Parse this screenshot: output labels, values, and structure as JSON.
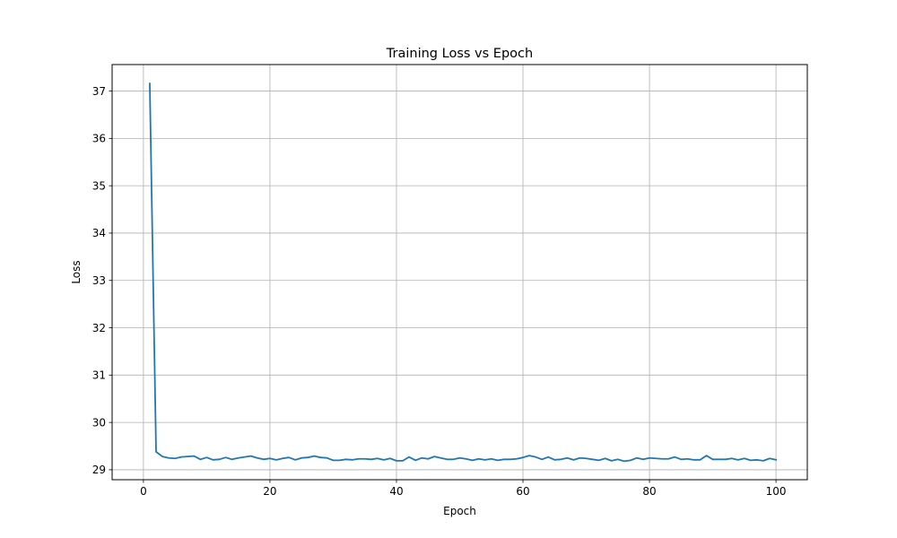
{
  "chart_data": {
    "type": "line",
    "title": "Training Loss vs Epoch",
    "xlabel": "Epoch",
    "ylabel": "Loss",
    "xlim": [
      -4.95,
      104.95
    ],
    "ylim": [
      28.79,
      37.56
    ],
    "xticks": [
      0,
      20,
      40,
      60,
      80,
      100
    ],
    "yticks": [
      29,
      30,
      31,
      32,
      33,
      34,
      35,
      36,
      37
    ],
    "grid": true,
    "series_color": "#1f77b4",
    "series": [
      {
        "x": [
          1,
          2,
          3,
          4,
          5,
          6,
          7,
          8,
          9,
          10,
          11,
          12,
          13,
          14,
          15,
          16,
          17,
          18,
          19,
          20,
          21,
          22,
          23,
          24,
          25,
          26,
          27,
          28,
          29,
          30,
          31,
          32,
          33,
          34,
          35,
          36,
          37,
          38,
          39,
          40,
          41,
          42,
          43,
          44,
          45,
          46,
          47,
          48,
          49,
          50,
          51,
          52,
          53,
          54,
          55,
          56,
          57,
          58,
          59,
          60,
          61,
          62,
          63,
          64,
          65,
          66,
          67,
          68,
          69,
          70,
          71,
          72,
          73,
          74,
          75,
          76,
          77,
          78,
          79,
          80,
          81,
          82,
          83,
          84,
          85,
          86,
          87,
          88,
          89,
          90,
          91,
          92,
          93,
          94,
          95,
          96,
          97,
          98,
          99,
          100
        ],
        "values": [
          37.16,
          29.38,
          29.28,
          29.25,
          29.24,
          29.27,
          29.28,
          29.29,
          29.22,
          29.26,
          29.21,
          29.22,
          29.26,
          29.22,
          29.25,
          29.27,
          29.29,
          29.25,
          29.22,
          29.24,
          29.21,
          29.24,
          29.26,
          29.21,
          29.25,
          29.26,
          29.29,
          29.26,
          29.25,
          29.2,
          29.2,
          29.22,
          29.21,
          29.23,
          29.23,
          29.22,
          29.24,
          29.21,
          29.24,
          29.19,
          29.19,
          29.27,
          29.2,
          29.25,
          29.23,
          29.28,
          29.25,
          29.22,
          29.22,
          29.25,
          29.23,
          29.2,
          29.23,
          29.21,
          29.23,
          29.2,
          29.22,
          29.22,
          29.23,
          29.26,
          29.3,
          29.27,
          29.22,
          29.27,
          29.21,
          29.22,
          29.25,
          29.21,
          29.25,
          29.24,
          29.22,
          29.2,
          29.24,
          29.19,
          29.22,
          29.18,
          29.2,
          29.25,
          29.22,
          29.25,
          29.24,
          29.23,
          29.23,
          29.27,
          29.22,
          29.23,
          29.21,
          29.21,
          29.3,
          29.22,
          29.22,
          29.22,
          29.24,
          29.21,
          29.24,
          29.2,
          29.21,
          29.19,
          29.24,
          29.21
        ]
      }
    ]
  }
}
